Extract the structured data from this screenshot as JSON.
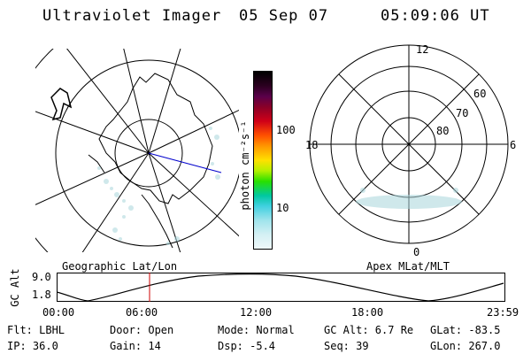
{
  "header": {
    "instrument": "Ultraviolet Imager",
    "date": "05 Sep 07",
    "time": "05:09:06 UT"
  },
  "colorbar": {
    "unit_label": "photon cm⁻²s⁻¹",
    "ticks": [
      "100",
      "10"
    ]
  },
  "polar_plot": {
    "labels": {
      "top": "12",
      "bottom": "0",
      "left": "18",
      "right": "6",
      "lat60": "60",
      "lat70": "70",
      "lat80": "80"
    }
  },
  "orbit_panel": {
    "left_title": "Geographic Lat/Lon",
    "right_title": "Apex MLat/MLT",
    "y_label": "GC Alt",
    "y_ticks": [
      "9.0",
      "1.8"
    ],
    "x_ticks": [
      "00:00",
      "06:00",
      "12:00",
      "18:00",
      "23:59"
    ]
  },
  "status": {
    "flt": "Flt: LBHL",
    "ip": "IP: 36.0",
    "door": "Door: Open",
    "gain": "Gain: 14",
    "mode": "Mode: Normal",
    "dsp": "Dsp:    -5.4",
    "gc_alt": "GC Alt: 6.7 Re",
    "seq": "Seq: 39",
    "glat": "GLat: -83.5",
    "glon": "GLon: 267.0"
  }
}
